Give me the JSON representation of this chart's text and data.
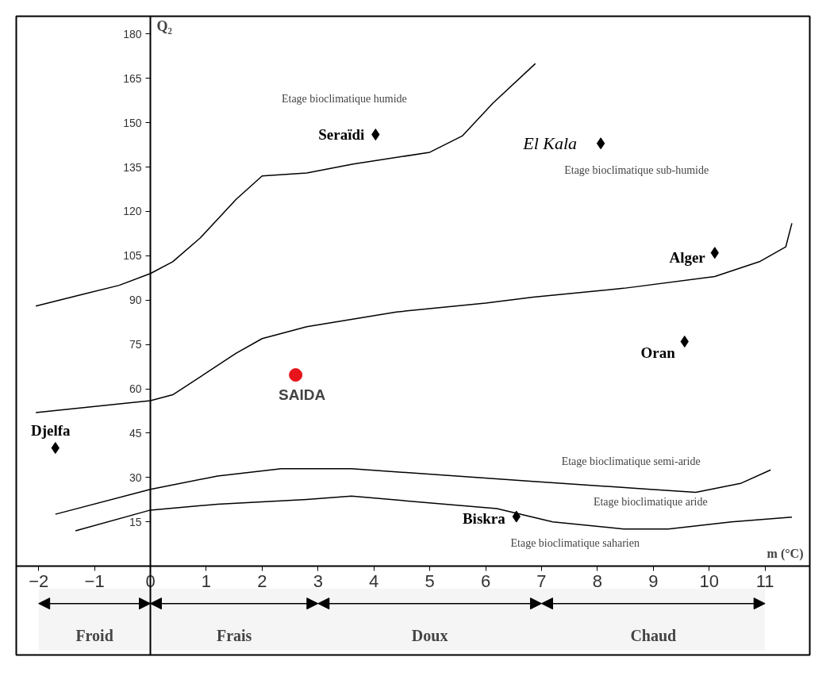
{
  "chart_data": {
    "type": "scatter",
    "xlabel": "m (°C)",
    "ylabel": "Q₂",
    "xlim": [
      -2.4,
      11.8
    ],
    "ylim": [
      -30,
      186
    ],
    "xticks": [
      -2,
      -1,
      0,
      1,
      2,
      3,
      4,
      5,
      6,
      7,
      8,
      9,
      10,
      11
    ],
    "yticks": [
      15,
      30,
      45,
      60,
      75,
      90,
      105,
      120,
      135,
      150,
      165,
      180
    ],
    "grid": false,
    "series": [
      {
        "type": "line",
        "color": "#000000",
        "x": [
          -2.05,
          -1.2,
          -0.56,
          0,
          0.4,
          0.89,
          1.53,
          2.0,
          2.8,
          3.63,
          5.0,
          5.58,
          6.13,
          6.89
        ],
        "values": [
          88,
          92,
          95,
          99,
          103,
          111,
          124,
          132,
          133,
          136,
          140,
          145.5,
          156.6,
          170
        ]
      },
      {
        "type": "line",
        "color": "#000000",
        "x": [
          -2.05,
          0,
          0.4,
          1.05,
          1.53,
          2.0,
          2.8,
          4.4,
          6.0,
          6.85,
          8.47,
          10.1,
          10.9,
          11.37,
          11.48
        ],
        "values": [
          52,
          56,
          58,
          66,
          72,
          77,
          81,
          86,
          89,
          91,
          94,
          98,
          103,
          108,
          116
        ]
      },
      {
        "type": "line",
        "color": "#000000",
        "x": [
          -1.7,
          0,
          1.2,
          2.34,
          3.6,
          6.85,
          8.95,
          9.76,
          10.56,
          11.1
        ],
        "values": [
          17.6,
          26,
          30.5,
          33,
          33,
          28.7,
          26,
          25,
          28,
          32.6
        ]
      },
      {
        "type": "line",
        "color": "#000000",
        "x": [
          -1.34,
          0,
          1.2,
          2.8,
          3.6,
          6.2,
          7.2,
          8.47,
          9.27,
          10.4,
          11.48
        ],
        "values": [
          12,
          19,
          21,
          22.6,
          23.7,
          19.5,
          15,
          12.6,
          12.6,
          15,
          16.6
        ]
      },
      {
        "name": "Seraïdi",
        "color": "#000000",
        "marker": "diamond",
        "x": [
          4.03
        ],
        "values": [
          146
        ]
      },
      {
        "name": "El Kala",
        "color": "#000000",
        "marker": "diamond",
        "x": [
          8.06
        ],
        "values": [
          143
        ]
      },
      {
        "name": "Alger",
        "color": "#000000",
        "marker": "diamond",
        "x": [
          10.1
        ],
        "values": [
          106
        ]
      },
      {
        "name": "Oran",
        "color": "#000000",
        "marker": "diamond",
        "x": [
          9.56
        ],
        "values": [
          76
        ]
      },
      {
        "name": "SAIDA",
        "color": "#e8141b",
        "marker": "circle",
        "x": [
          2.6
        ],
        "values": [
          64.7
        ]
      },
      {
        "name": "Djelfa",
        "color": "#000000",
        "marker": "diamond",
        "x": [
          -1.7
        ],
        "values": [
          40
        ]
      },
      {
        "name": "Biskra",
        "color": "#000000",
        "marker": "diamond",
        "x": [
          6.55
        ],
        "values": [
          16.8
        ]
      }
    ],
    "annotations": [
      "Etage bioclimatique humide",
      "Etage bioclimatique sub-humide",
      "Etage bioclimatique semi-aride",
      "Etage bioclimatique aride",
      "Etage bioclimatique saharien"
    ],
    "bands": [
      {
        "axis": "x",
        "from": -2,
        "to": 0,
        "label": "Froid",
        "color": "#eeeeee"
      },
      {
        "axis": "x",
        "from": 0,
        "to": 3,
        "label": "Frais",
        "color": "#eeeeee"
      },
      {
        "axis": "x",
        "from": 3,
        "to": 7,
        "label": "Doux",
        "color": "#eeeeee"
      },
      {
        "axis": "x",
        "from": 7,
        "to": 11,
        "label": "Chaud",
        "color": "#eeeeee"
      }
    ]
  }
}
